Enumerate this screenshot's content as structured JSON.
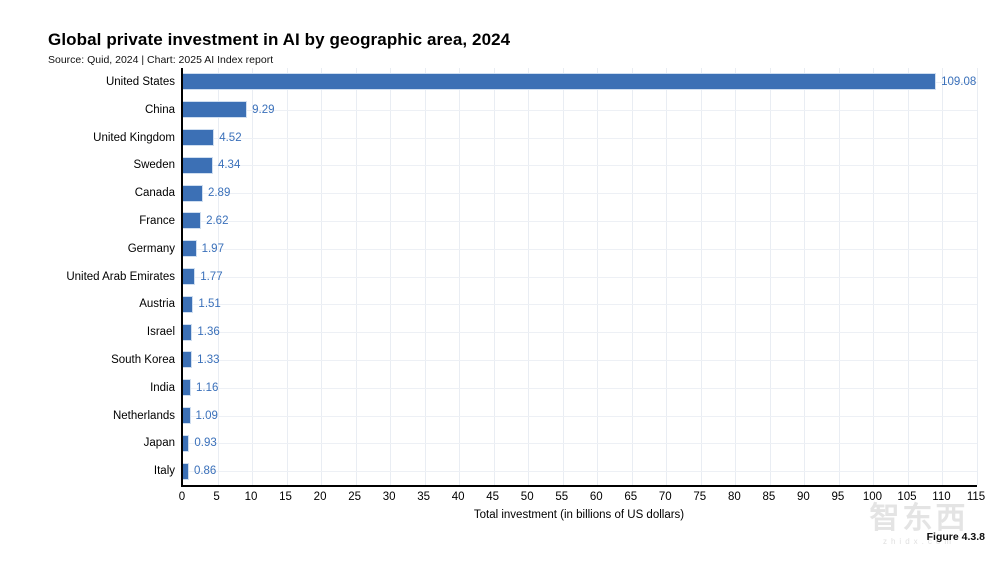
{
  "header": {
    "title": "Global private investment in AI by geographic area, 2024",
    "subtitle": "Source: Quid, 2024 | Chart: 2025 AI Index report"
  },
  "chart_data": {
    "type": "bar",
    "orientation": "horizontal",
    "title": "Global private investment in AI by geographic area, 2024",
    "subtitle": "Source: Quid, 2024 | Chart: 2025 AI Index report",
    "categories": [
      "United States",
      "China",
      "United Kingdom",
      "Sweden",
      "Canada",
      "France",
      "Germany",
      "United Arab Emirates",
      "Austria",
      "Israel",
      "South Korea",
      "India",
      "Netherlands",
      "Japan",
      "Italy"
    ],
    "values": [
      109.08,
      9.29,
      4.52,
      4.34,
      2.89,
      2.62,
      1.97,
      1.77,
      1.51,
      1.36,
      1.33,
      1.16,
      1.09,
      0.93,
      0.86
    ],
    "value_labels": [
      "109.08",
      "9.29",
      "4.52",
      "4.34",
      "2.89",
      "2.62",
      "1.97",
      "1.77",
      "1.51",
      "1.36",
      "1.33",
      "1.16",
      "1.09",
      "0.93",
      "0.86"
    ],
    "xlabel": "Total investment (in billions of US dollars)",
    "ylabel": "",
    "xlim": [
      0,
      115
    ],
    "xticks": [
      0,
      5,
      10,
      15,
      20,
      25,
      30,
      35,
      40,
      45,
      50,
      55,
      60,
      65,
      70,
      75,
      80,
      85,
      90,
      95,
      100,
      105,
      110,
      115
    ],
    "grid": true,
    "legend": "none",
    "bar_color": "#3c70b5",
    "value_label_color": "#3a70ba"
  },
  "footer": {
    "figure_label": "Figure 4.3.8",
    "watermark_text": "智东西",
    "watermark_sub": "zhidx.com"
  }
}
